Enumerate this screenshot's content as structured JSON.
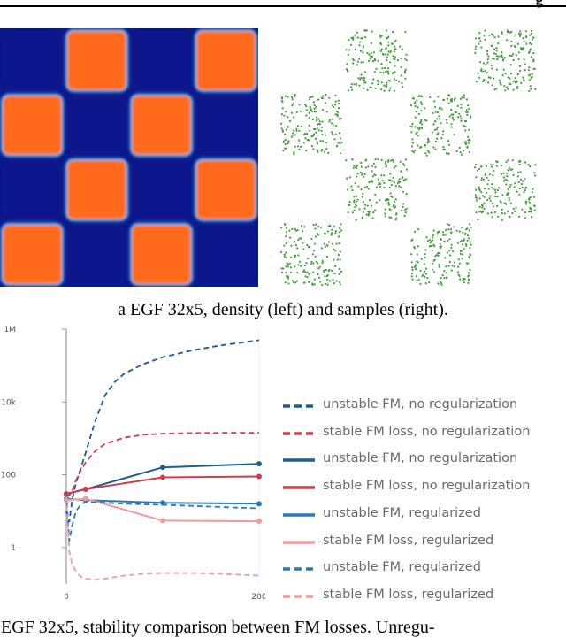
{
  "header": {
    "text": "g"
  },
  "figure_a": {
    "caption": "a EGF 32x5, density (left) and samples (right).",
    "density_grid": {
      "rows": [
        [
          "blue",
          "orange",
          "blue",
          "orange"
        ],
        [
          "orange",
          "blue",
          "orange",
          "blue"
        ],
        [
          "blue",
          "orange",
          "blue",
          "orange"
        ],
        [
          "orange",
          "blue",
          "orange",
          "blue"
        ]
      ]
    },
    "samples_grid": {
      "rows": [
        [
          false,
          true,
          false,
          true
        ],
        [
          true,
          false,
          true,
          false
        ],
        [
          false,
          true,
          false,
          true
        ],
        [
          true,
          false,
          true,
          false
        ]
      ]
    },
    "colors": {
      "high": "#ff6a1c",
      "low": "#0a1a8a",
      "edge": "#37c6ff",
      "samples": "#3f9e36"
    }
  },
  "figure_b": {
    "caption": "b EGF 32x5, stability comparison between FM losses. Unregu-"
  },
  "chart_data": {
    "type": "line",
    "ylabel": "",
    "xlabel": "",
    "y_scale": "log",
    "ylim": [
      0.1,
      1000000
    ],
    "xlim": [
      0,
      200
    ],
    "y_ticks": [
      1,
      100,
      10000,
      1000000
    ],
    "y_tick_labels": [
      "1",
      "100",
      "10k",
      "1M"
    ],
    "x_ticks": [
      0,
      200
    ],
    "x_tick_labels": [
      "0",
      "200"
    ],
    "legend_position": "right",
    "grid": false,
    "series": [
      {
        "name": "unstable FM, no regularization",
        "color": "#1a5a9a",
        "dash": true,
        "markers": false,
        "x": [
          0,
          3,
          6,
          10,
          15,
          20,
          30,
          40,
          50,
          60,
          80,
          100,
          130,
          160,
          200
        ],
        "y": [
          10,
          5,
          20,
          60,
          150,
          400,
          3000,
          15000,
          35000,
          60000,
          110000,
          170000,
          260000,
          360000,
          500000
        ]
      },
      {
        "name": "stable FM loss, no regularization",
        "color": "#d43a45",
        "dash": true,
        "markers": false,
        "x": [
          0,
          5,
          10,
          15,
          20,
          30,
          40,
          60,
          80,
          100,
          130,
          160,
          200
        ],
        "y": [
          25,
          30,
          70,
          130,
          220,
          450,
          700,
          1050,
          1250,
          1350,
          1400,
          1420,
          1420
        ]
      },
      {
        "name": "unstable FM, no regularization",
        "color": "#1b5e8f",
        "dash": false,
        "markers": true,
        "x": [
          0,
          20,
          100,
          200
        ],
        "y": [
          30,
          40,
          160,
          200
        ]
      },
      {
        "name": "stable FM loss, no regularization",
        "color": "#cf3d4a",
        "dash": false,
        "markers": true,
        "x": [
          0,
          20,
          100,
          200
        ],
        "y": [
          30,
          40,
          85,
          90
        ]
      },
      {
        "name": "unstable FM, regularized",
        "color": "#2a7ab8",
        "dash": false,
        "markers": true,
        "x": [
          0,
          20,
          100,
          200
        ],
        "y": [
          22,
          20,
          17,
          16
        ]
      },
      {
        "name": "stable FM loss, regularized",
        "color": "#f29a9a",
        "dash": false,
        "markers": true,
        "x": [
          0,
          20,
          100,
          200
        ],
        "y": [
          20,
          22,
          5.5,
          5.3
        ]
      },
      {
        "name": "unstable FM, regularized",
        "color": "#2a7ab8",
        "dash": true,
        "markers": false,
        "x": [
          0,
          3,
          6,
          10,
          15,
          20,
          40,
          60,
          100,
          130,
          160,
          200
        ],
        "y": [
          30,
          1.5,
          4,
          10,
          15,
          18,
          17,
          16,
          15,
          14,
          13,
          12
        ]
      },
      {
        "name": "stable FM loss, regularized",
        "color": "#f29a9a",
        "dash": true,
        "markers": false,
        "x": [
          0,
          3,
          6,
          10,
          15,
          20,
          30,
          40,
          60,
          80,
          100,
          130,
          160,
          200
        ],
        "y": [
          25,
          0.8,
          0.35,
          0.22,
          0.16,
          0.14,
          0.13,
          0.14,
          0.17,
          0.19,
          0.2,
          0.2,
          0.19,
          0.17
        ]
      }
    ]
  }
}
